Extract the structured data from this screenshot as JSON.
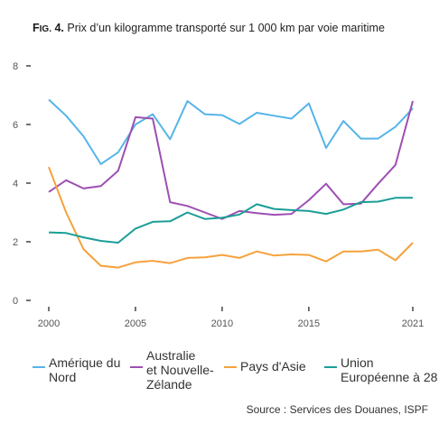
{
  "title": {
    "fig": "Fig. 4.",
    "text": "Prix d’un kilogramme transporté sur 1 000 km par voie maritime"
  },
  "source": "Source : Services des Douanes, ISPF",
  "chart_data": {
    "type": "line",
    "x": [
      2000,
      2001,
      2002,
      2003,
      2004,
      2005,
      2006,
      2007,
      2008,
      2009,
      2010,
      2011,
      2012,
      2013,
      2014,
      2015,
      2016,
      2017,
      2018,
      2019,
      2020,
      2021
    ],
    "xticks": [
      2000,
      2005,
      2010,
      2015,
      2021
    ],
    "yticks": [
      0,
      2,
      4,
      6,
      8
    ],
    "ylim": [
      0,
      8
    ],
    "xlim": [
      2000,
      2021
    ],
    "grid": false,
    "legend_position": "bottom",
    "series": [
      {
        "name": "Amérique du\nNord",
        "color": "#56b4e9",
        "values": [
          6.85,
          6.3,
          5.6,
          4.65,
          5.05,
          6.0,
          6.35,
          5.5,
          6.8,
          6.35,
          6.32,
          6.02,
          6.4,
          6.3,
          6.2,
          6.72,
          5.2,
          6.12,
          5.52,
          5.52,
          5.92,
          6.55
        ]
      },
      {
        "name": "Australie\net Nouvelle-\nZélande",
        "color": "#9e4fb3",
        "values": [
          3.7,
          4.1,
          3.82,
          3.9,
          4.42,
          6.25,
          6.2,
          3.35,
          3.22,
          3.0,
          2.78,
          3.05,
          2.98,
          2.92,
          2.95,
          3.42,
          3.98,
          3.28,
          3.3,
          3.98,
          4.62,
          6.8
        ]
      },
      {
        "name": "Pays d'Asie",
        "color": "#f5a23c",
        "values": [
          4.55,
          3.0,
          1.75,
          1.18,
          1.12,
          1.3,
          1.35,
          1.27,
          1.45,
          1.47,
          1.55,
          1.45,
          1.67,
          1.53,
          1.57,
          1.55,
          1.33,
          1.67,
          1.67,
          1.73,
          1.37,
          1.97
        ]
      },
      {
        "name": "Union\nEuropéenne à 28",
        "color": "#1a9e96",
        "values": [
          2.32,
          2.3,
          2.15,
          2.03,
          1.97,
          2.45,
          2.68,
          2.7,
          3.0,
          2.78,
          2.82,
          2.93,
          3.28,
          3.12,
          3.08,
          3.05,
          2.95,
          3.1,
          3.35,
          3.37,
          3.5,
          3.5
        ]
      }
    ]
  }
}
